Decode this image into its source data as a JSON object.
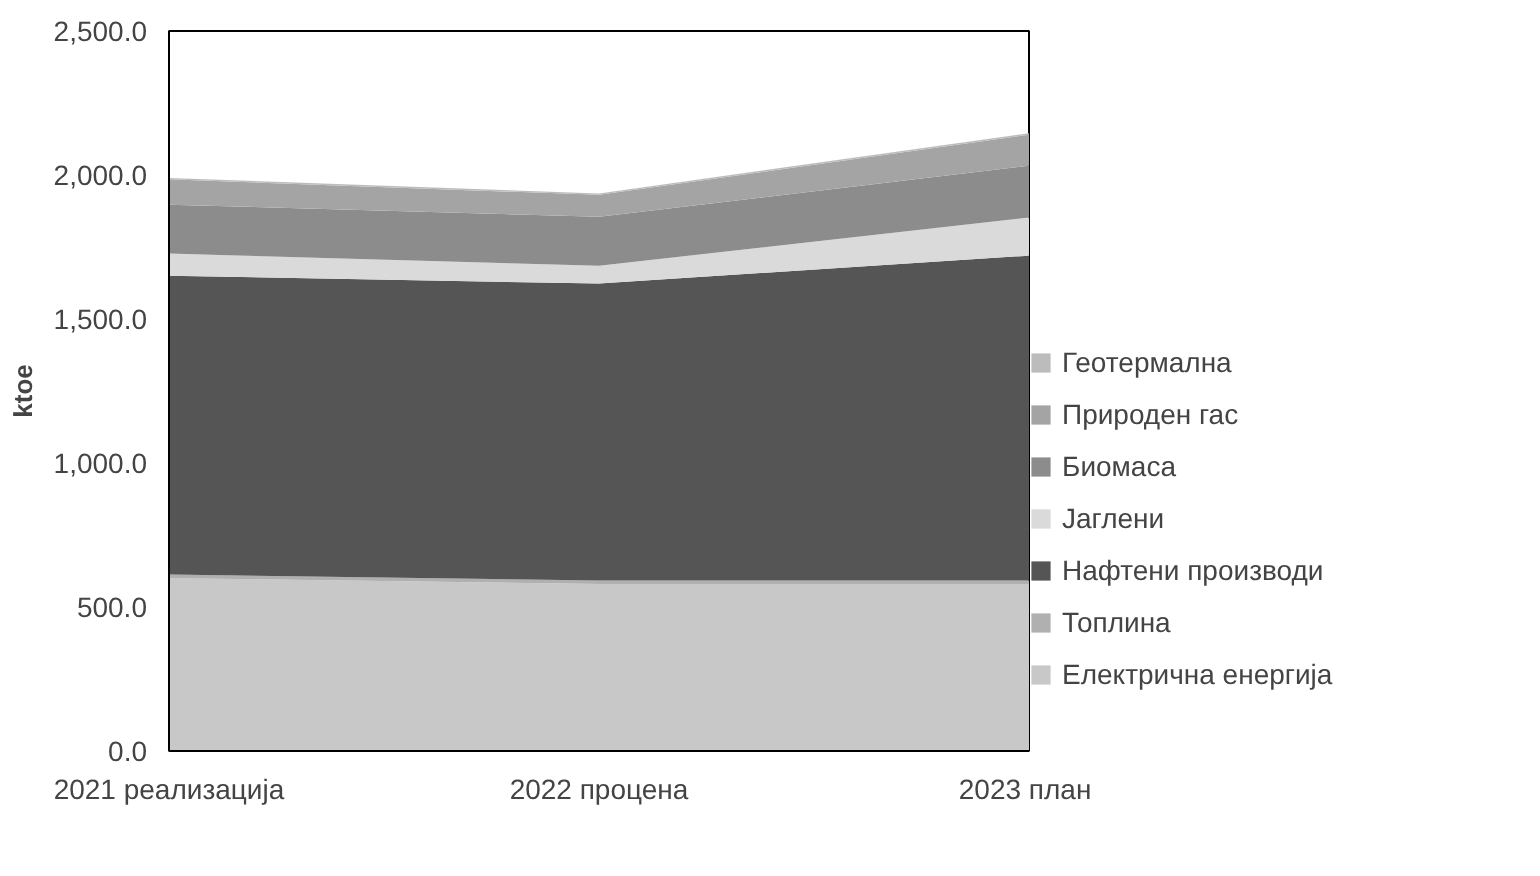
{
  "chart_data": {
    "type": "area",
    "stacked": true,
    "ylabel": "ktoe",
    "categories": [
      "2021 реализација",
      "2022 процена",
      "2023  план"
    ],
    "ylim": [
      0,
      2500
    ],
    "yticks": [
      {
        "value": 0,
        "label": "0.0"
      },
      {
        "value": 500,
        "label": "500.0"
      },
      {
        "value": 1000,
        "label": "1,000.0"
      },
      {
        "value": 1500,
        "label": "1,500.0"
      },
      {
        "value": 2000,
        "label": "2,000.0"
      },
      {
        "value": 2500,
        "label": "2,500.0"
      }
    ],
    "grid": false,
    "legend": "right",
    "series": [
      {
        "name": "Електрична енергија",
        "color": "#c8c8c8",
        "values": [
          600,
          580,
          580
        ]
      },
      {
        "name": "Топлина",
        "color": "#b0b0b0",
        "values": [
          13,
          12,
          12
        ]
      },
      {
        "name": "Нафтени производи",
        "color": "#555555",
        "values": [
          1037,
          1031,
          1128
        ]
      },
      {
        "name": "Јаглени",
        "color": "#dadada",
        "values": [
          77,
          62,
          132
        ]
      },
      {
        "name": "Биомаса",
        "color": "#8c8c8c",
        "values": [
          170,
          170,
          180
        ]
      },
      {
        "name": "Природен гас",
        "color": "#a4a4a4",
        "values": [
          88,
          76,
          108
        ]
      },
      {
        "name": "Геотермална",
        "color": "#bcbcbc",
        "values": [
          5,
          5,
          5
        ]
      }
    ]
  }
}
